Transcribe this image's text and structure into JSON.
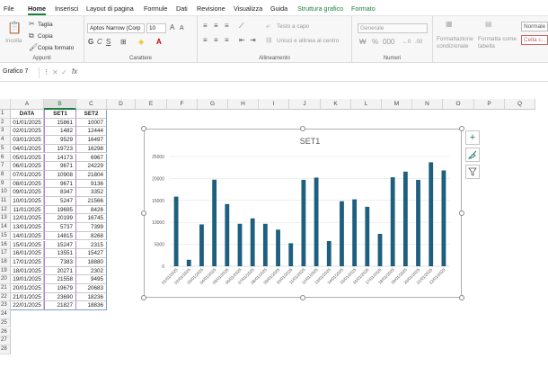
{
  "menu": {
    "tabs": [
      "File",
      "Home",
      "Inserisci",
      "Layout di pagina",
      "Formule",
      "Dati",
      "Revisione",
      "Visualizza",
      "Guida"
    ],
    "context_tabs": [
      "Struttura grafico",
      "Formato"
    ],
    "active": "Home"
  },
  "ribbon": {
    "clipboard": {
      "paste": "Incolla",
      "cut": "Taglia",
      "copy": "Copia",
      "format_painter": "Copia formato",
      "label": "Appunti"
    },
    "font": {
      "family": "Aptos Narrow (Corp",
      "size": "10",
      "label": "Carattere"
    },
    "alignment": {
      "wrap": "Testo a capo",
      "merge": "Unisci e allinea al centro",
      "label": "Allineamento"
    },
    "number": {
      "format": "Generale",
      "label": "Numeri"
    },
    "styles": {
      "conditional": "Formattazione condizionale",
      "as_table": "Formatta come tabella",
      "normal": "Normale",
      "cell_calc": "Cella c..."
    }
  },
  "formula_bar": {
    "name_box": "Grafico 7",
    "fx": "fx",
    "content": ""
  },
  "columns": [
    "A",
    "B",
    "C",
    "D",
    "E",
    "F",
    "G",
    "H",
    "I",
    "J",
    "K",
    "L",
    "M",
    "N",
    "O",
    "P",
    "Q"
  ],
  "table": {
    "headers": [
      "DATA",
      "SET1",
      "SET2"
    ],
    "rows": [
      [
        "01/01/2025",
        "15861",
        "10007"
      ],
      [
        "02/01/2025",
        "1482",
        "12444"
      ],
      [
        "03/01/2025",
        "9529",
        "16497"
      ],
      [
        "04/01/2025",
        "19723",
        "16298"
      ],
      [
        "05/01/2025",
        "14173",
        "6967"
      ],
      [
        "06/01/2025",
        "9671",
        "24229"
      ],
      [
        "07/01/2025",
        "10908",
        "21804"
      ],
      [
        "08/01/2025",
        "9671",
        "9136"
      ],
      [
        "09/01/2025",
        "8347",
        "3352"
      ],
      [
        "10/01/2025",
        "5247",
        "21566"
      ],
      [
        "11/01/2025",
        "19695",
        "8426"
      ],
      [
        "12/01/2025",
        "20199",
        "16745"
      ],
      [
        "13/01/2025",
        "5737",
        "7399"
      ],
      [
        "14/01/2025",
        "14815",
        "8268"
      ],
      [
        "15/01/2025",
        "15247",
        "2315"
      ],
      [
        "16/01/2025",
        "13551",
        "15427"
      ],
      [
        "17/01/2025",
        "7383",
        "18880"
      ],
      [
        "18/01/2025",
        "20271",
        "2302"
      ],
      [
        "19/01/2025",
        "21558",
        "9495"
      ],
      [
        "20/01/2025",
        "19679",
        "20683"
      ],
      [
        "21/01/2025",
        "23690",
        "18236"
      ],
      [
        "22/01/2025",
        "21827",
        "18836"
      ]
    ]
  },
  "extra_rows": [
    "24",
    "25",
    "26",
    "27",
    "28"
  ],
  "chart_data": {
    "type": "bar",
    "title": "SET1",
    "categories": [
      "01/01/2025",
      "02/01/2025",
      "03/01/2025",
      "04/01/2025",
      "05/01/2025",
      "06/01/2025",
      "07/01/2025",
      "08/01/2025",
      "09/01/2025",
      "10/01/2025",
      "11/01/2025",
      "12/01/2025",
      "13/01/2025",
      "14/01/2025",
      "15/01/2025",
      "16/01/2025",
      "17/01/2025",
      "18/01/2025",
      "19/01/2025",
      "20/01/2025",
      "21/01/2025",
      "22/01/2025"
    ],
    "series": [
      {
        "values": [
          15861,
          1482,
          9529,
          19723,
          14173,
          9671,
          10908,
          9671,
          8347,
          5247,
          19695,
          20199,
          5737,
          14815,
          15247,
          13551,
          7383,
          20271,
          21558,
          19679,
          23690,
          21827
        ],
        "color": "#1e5f80"
      }
    ],
    "yticks": [
      "0",
      "5000",
      "10000",
      "15000",
      "20000",
      "25000"
    ],
    "ylim": [
      0,
      25000
    ],
    "grid": true
  },
  "chart_buttons": {
    "add": "+",
    "style": "brush-icon",
    "filter": "filter-icon"
  }
}
